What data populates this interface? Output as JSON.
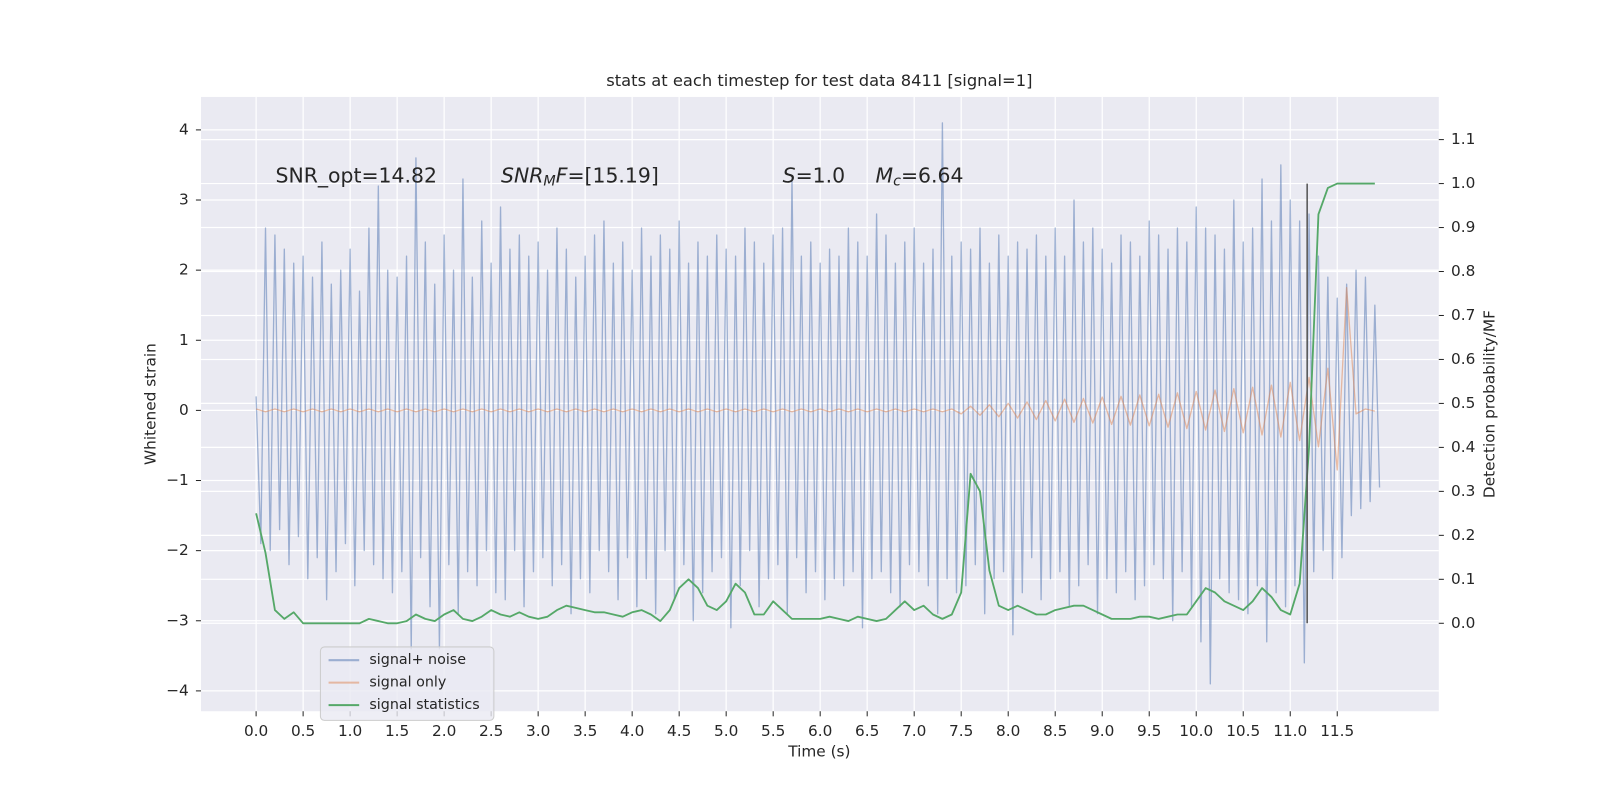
{
  "chart_data": {
    "type": "line",
    "title": "stats at each timestep for test data 8411 [signal=1]",
    "xlabel": "Time (s)",
    "ylabel": "Whitened strain",
    "y2label": "Detection probability/MF",
    "xlim": [
      -0.586,
      12.58
    ],
    "ylim": [
      -4.29,
      4.47
    ],
    "y2lim": [
      -0.2,
      1.197
    ],
    "grid": true,
    "legend": "lower left",
    "xticks": [
      {
        "value": 0,
        "label": "0.0"
      },
      {
        "value": 0.5,
        "label": "0.5"
      },
      {
        "value": 1,
        "label": "1.0"
      },
      {
        "value": 1.5,
        "label": "1.5"
      },
      {
        "value": 2,
        "label": "2.0"
      },
      {
        "value": 2.5,
        "label": "2.5"
      },
      {
        "value": 3,
        "label": "3.0"
      },
      {
        "value": 3.5,
        "label": "3.5"
      },
      {
        "value": 4,
        "label": "4.0"
      },
      {
        "value": 4.5,
        "label": "4.5"
      },
      {
        "value": 5,
        "label": "5.0"
      },
      {
        "value": 5.5,
        "label": "5.5"
      },
      {
        "value": 6,
        "label": "6.0"
      },
      {
        "value": 6.5,
        "label": "6.5"
      },
      {
        "value": 7,
        "label": "7.0"
      },
      {
        "value": 7.5,
        "label": "7.5"
      },
      {
        "value": 8,
        "label": "8.0"
      },
      {
        "value": 8.5,
        "label": "8.5"
      },
      {
        "value": 9,
        "label": "9.0"
      },
      {
        "value": 9.5,
        "label": "9.5"
      },
      {
        "value": 10,
        "label": "10.0"
      },
      {
        "value": 10.5,
        "label": "10.5"
      },
      {
        "value": 11,
        "label": "11.0"
      },
      {
        "value": 11.5,
        "label": "11.5"
      }
    ],
    "yticks": [
      {
        "value": -4,
        "label": "−4"
      },
      {
        "value": -3,
        "label": "−3"
      },
      {
        "value": -2,
        "label": "−2"
      },
      {
        "value": -1,
        "label": "−1"
      },
      0,
      1,
      2,
      3,
      4
    ],
    "y2ticks": [
      {
        "value": 0,
        "label": "0.0"
      },
      {
        "value": 0.1,
        "label": "0.1"
      },
      {
        "value": 0.2,
        "label": "0.2"
      },
      {
        "value": 0.3,
        "label": "0.3"
      },
      {
        "value": 0.4,
        "label": "0.4"
      },
      {
        "value": 0.5,
        "label": "0.5"
      },
      {
        "value": 0.6,
        "label": "0.6"
      },
      {
        "value": 0.7,
        "label": "0.7"
      },
      {
        "value": 0.8,
        "label": "0.8"
      },
      {
        "value": 0.9,
        "label": "0.9"
      },
      {
        "value": 1,
        "label": "1.0"
      },
      {
        "value": 1.1,
        "label": "1.1"
      }
    ],
    "annotations": [
      [
        {
          "t": "SNR_opt=14.82"
        }
      ],
      [
        {
          "t": "SNR",
          "style": "italic"
        },
        {
          "t": "M",
          "style": "italic-sub"
        },
        {
          "t": "F",
          "style": "italic"
        },
        {
          "t": "=[15.19]"
        }
      ],
      [
        {
          "t": "S",
          "style": "italic"
        },
        {
          "t": "=1.0"
        }
      ],
      [
        {
          "t": "M",
          "style": "italic"
        },
        {
          "t": "c",
          "style": "italic-sub"
        },
        {
          "t": "=6.64"
        }
      ]
    ],
    "vline": {
      "x": 11.18,
      "ymin": 0,
      "ymax": 1,
      "color": "#555555"
    },
    "series": [
      {
        "name": "signal+ noise",
        "color": "#4c72b0",
        "opacity": 0.5,
        "x": [
          0,
          0.05,
          0.1,
          0.15,
          0.2,
          0.25,
          0.3,
          0.35,
          0.4,
          0.45,
          0.5,
          0.55,
          0.6,
          0.65,
          0.7,
          0.75,
          0.8,
          0.85,
          0.9,
          0.95,
          1,
          1.05,
          1.1,
          1.15,
          1.2,
          1.25,
          1.3,
          1.35,
          1.4,
          1.45,
          1.5,
          1.55,
          1.6,
          1.65,
          1.7,
          1.75,
          1.8,
          1.85,
          1.9,
          1.95,
          2,
          2.05,
          2.1,
          2.15,
          2.2,
          2.25,
          2.3,
          2.35,
          2.4,
          2.45,
          2.5,
          2.55,
          2.6,
          2.65,
          2.7,
          2.75,
          2.8,
          2.85,
          2.9,
          2.95,
          3,
          3.05,
          3.1,
          3.15,
          3.2,
          3.25,
          3.3,
          3.35,
          3.4,
          3.45,
          3.5,
          3.55,
          3.6,
          3.65,
          3.7,
          3.75,
          3.8,
          3.85,
          3.9,
          3.95,
          4,
          4.05,
          4.1,
          4.15,
          4.2,
          4.25,
          4.3,
          4.35,
          4.4,
          4.45,
          4.5,
          4.55,
          4.6,
          4.65,
          4.7,
          4.75,
          4.8,
          4.85,
          4.9,
          4.95,
          5,
          5.05,
          5.1,
          5.15,
          5.2,
          5.25,
          5.3,
          5.35,
          5.4,
          5.45,
          5.5,
          5.55,
          5.6,
          5.65,
          5.7,
          5.75,
          5.8,
          5.85,
          5.9,
          5.95,
          6,
          6.05,
          6.1,
          6.15,
          6.2,
          6.25,
          6.3,
          6.35,
          6.4,
          6.45,
          6.5,
          6.55,
          6.6,
          6.65,
          6.7,
          6.75,
          6.8,
          6.85,
          6.9,
          6.95,
          7,
          7.05,
          7.1,
          7.15,
          7.2,
          7.25,
          7.3,
          7.35,
          7.4,
          7.45,
          7.5,
          7.55,
          7.6,
          7.65,
          7.7,
          7.75,
          7.8,
          7.85,
          7.9,
          7.95,
          8,
          8.05,
          8.1,
          8.15,
          8.2,
          8.25,
          8.3,
          8.35,
          8.4,
          8.45,
          8.5,
          8.55,
          8.6,
          8.65,
          8.7,
          8.75,
          8.8,
          8.85,
          8.9,
          8.95,
          9,
          9.05,
          9.1,
          9.15,
          9.2,
          9.25,
          9.3,
          9.35,
          9.4,
          9.45,
          9.5,
          9.55,
          9.6,
          9.65,
          9.7,
          9.75,
          9.8,
          9.85,
          9.9,
          9.95,
          10,
          10.05,
          10.1,
          10.15,
          10.2,
          10.25,
          10.3,
          10.35,
          10.4,
          10.45,
          10.5,
          10.55,
          10.6,
          10.65,
          10.7,
          10.75,
          10.8,
          10.85,
          10.9,
          10.95,
          11,
          11.05,
          11.1,
          11.15,
          11.2,
          11.25,
          11.3,
          11.35,
          11.4,
          11.45,
          11.5,
          11.55,
          11.6,
          11.65,
          11.7,
          11.75,
          11.8,
          11.85,
          11.9,
          11.95
        ],
        "values": [
          0.2,
          -1.9,
          2.6,
          -2.0,
          2.5,
          -1.7,
          2.3,
          -2.2,
          2.1,
          -1.8,
          2.2,
          -2.4,
          1.9,
          -2.1,
          2.4,
          -2.7,
          1.8,
          -2.3,
          2.0,
          -1.9,
          2.3,
          -2.5,
          1.7,
          -2.0,
          2.6,
          -2.2,
          3.2,
          -2.4,
          2.0,
          -2.6,
          1.9,
          -2.3,
          2.2,
          -3.4,
          3.6,
          -2.1,
          2.4,
          -2.8,
          1.8,
          -3.4,
          2.5,
          -2.2,
          2.0,
          -2.9,
          3.3,
          -2.3,
          1.9,
          -2.5,
          2.7,
          -2.0,
          2.1,
          -2.6,
          2.9,
          -2.7,
          2.3,
          -2.0,
          2.5,
          -2.8,
          2.2,
          -2.3,
          2.4,
          -2.1,
          2.0,
          -2.5,
          2.6,
          -2.2,
          2.3,
          -2.9,
          1.9,
          -2.4,
          2.2,
          -2.6,
          2.5,
          -2.0,
          2.7,
          -2.3,
          2.1,
          -2.7,
          2.4,
          -2.1,
          2.0,
          -2.8,
          2.6,
          -2.4,
          2.2,
          -2.9,
          2.5,
          -2.0,
          2.3,
          -2.7,
          2.7,
          -2.2,
          2.1,
          -3.0,
          2.4,
          -2.6,
          2.2,
          -2.3,
          2.5,
          -2.1,
          2.3,
          -3.1,
          2.2,
          -2.5,
          2.6,
          -2.0,
          2.4,
          -2.8,
          2.1,
          -2.4,
          2.5,
          -2.2,
          2.6,
          -2.9,
          3.3,
          -2.1,
          2.2,
          -2.6,
          2.4,
          -2.3,
          2.1,
          -2.7,
          2.3,
          -2.4,
          2.2,
          -2.5,
          2.6,
          -2.3,
          2.4,
          -3.1,
          2.2,
          -2.4,
          2.8,
          -2.3,
          2.5,
          -2.6,
          2.1,
          -2.8,
          2.4,
          -2.2,
          2.6,
          -2.3,
          2.1,
          -2.5,
          2.3,
          -2.9,
          4.1,
          -2.4,
          2.2,
          -2.6,
          2.4,
          -2.5,
          2.3,
          -2.2,
          2.6,
          -2.9,
          2.1,
          -2.4,
          2.5,
          -2.3,
          2.2,
          -3.2,
          2.4,
          -2.6,
          2.3,
          -2.1,
          2.5,
          -2.7,
          2.2,
          -2.4,
          2.6,
          -2.3,
          2.2,
          -2.8,
          3.0,
          -2.5,
          2.4,
          -2.2,
          2.6,
          -2.9,
          2.3,
          -2.4,
          2.1,
          -2.6,
          2.5,
          -2.3,
          2.4,
          -2.7,
          2.2,
          -2.5,
          2.7,
          -2.2,
          2.5,
          -2.4,
          2.3,
          -3.0,
          2.6,
          -2.3,
          2.4,
          -2.8,
          2.9,
          -3.3,
          2.6,
          -3.9,
          2.5,
          -2.4,
          2.3,
          -2.6,
          3.0,
          -2.7,
          2.4,
          -2.9,
          2.6,
          -2.5,
          3.3,
          -3.3,
          2.7,
          -2.6,
          3.5,
          -2.8,
          3.0,
          -2.5,
          2.7,
          -3.6,
          2.8,
          -2.3,
          2.2,
          -2.0,
          1.9,
          -2.4,
          1.6,
          -2.1,
          1.8,
          -1.5,
          2.0,
          -1.4,
          1.9,
          -1.3,
          1.5,
          -1.1
        ]
      },
      {
        "name": "signal only",
        "color": "#dd8452",
        "opacity": 0.5,
        "x": [
          0,
          0.1,
          0.2,
          0.3,
          0.4,
          0.5,
          0.6,
          0.7,
          0.8,
          0.9,
          1,
          1.1,
          1.2,
          1.3,
          1.4,
          1.5,
          1.6,
          1.7,
          1.8,
          1.9,
          2,
          2.1,
          2.2,
          2.3,
          2.4,
          2.5,
          2.6,
          2.7,
          2.8,
          2.9,
          3,
          3.1,
          3.2,
          3.3,
          3.4,
          3.5,
          3.6,
          3.7,
          3.8,
          3.9,
          4,
          4.1,
          4.2,
          4.3,
          4.4,
          4.5,
          4.6,
          4.7,
          4.8,
          4.9,
          5,
          5.1,
          5.2,
          5.3,
          5.4,
          5.5,
          5.6,
          5.7,
          5.8,
          5.9,
          6,
          6.1,
          6.2,
          6.3,
          6.4,
          6.5,
          6.6,
          6.7,
          6.8,
          6.9,
          7,
          7.1,
          7.2,
          7.3,
          7.4,
          7.5,
          7.6,
          7.7,
          7.8,
          7.9,
          8,
          8.1,
          8.2,
          8.3,
          8.4,
          8.5,
          8.6,
          8.7,
          8.8,
          8.9,
          9,
          9.1,
          9.2,
          9.3,
          9.4,
          9.5,
          9.6,
          9.7,
          9.8,
          9.9,
          10,
          10.1,
          10.2,
          10.3,
          10.4,
          10.5,
          10.6,
          10.7,
          10.8,
          10.9,
          11,
          11.1,
          11.2,
          11.3,
          11.4,
          11.5,
          11.6,
          11.7,
          11.8,
          11.9
        ],
        "values": [
          0.02,
          -0.02,
          0.02,
          -0.02,
          0.02,
          -0.02,
          0.02,
          -0.02,
          0.02,
          -0.02,
          0.02,
          -0.02,
          0.02,
          -0.02,
          0.02,
          -0.02,
          0.02,
          -0.02,
          0.02,
          -0.02,
          0.02,
          -0.02,
          0.02,
          -0.02,
          0.02,
          -0.02,
          0.02,
          -0.02,
          0.02,
          -0.02,
          0.02,
          -0.02,
          0.02,
          -0.02,
          0.02,
          -0.02,
          0.02,
          -0.02,
          0.02,
          -0.02,
          0.02,
          -0.02,
          0.02,
          -0.02,
          0.02,
          -0.02,
          0.02,
          -0.02,
          0.02,
          -0.02,
          0.02,
          -0.02,
          0.02,
          -0.02,
          0.02,
          -0.02,
          0.02,
          -0.02,
          0.02,
          -0.02,
          0.02,
          -0.02,
          0.02,
          -0.02,
          0.02,
          -0.02,
          0.02,
          -0.02,
          0.02,
          -0.02,
          0.02,
          -0.02,
          0.02,
          -0.02,
          0.02,
          -0.05,
          0.06,
          -0.07,
          0.08,
          -0.09,
          0.1,
          -0.11,
          0.12,
          -0.13,
          0.14,
          -0.15,
          0.16,
          -0.17,
          0.17,
          -0.18,
          0.19,
          -0.2,
          0.2,
          -0.21,
          0.22,
          -0.22,
          0.23,
          -0.24,
          0.25,
          -0.26,
          0.27,
          -0.28,
          0.29,
          -0.3,
          0.31,
          -0.32,
          0.33,
          -0.35,
          0.36,
          -0.38,
          0.4,
          -0.43,
          0.47,
          -0.52,
          0.6,
          -0.85,
          1.75,
          -0.05,
          0.02,
          -0.01
        ]
      },
      {
        "name": "signal statistics",
        "color": "#55a868",
        "axis": "y2",
        "x": [
          0,
          0.1,
          0.2,
          0.3,
          0.4,
          0.5,
          0.6,
          0.7,
          0.8,
          0.9,
          1,
          1.1,
          1.2,
          1.3,
          1.4,
          1.5,
          1.6,
          1.7,
          1.8,
          1.9,
          2,
          2.1,
          2.2,
          2.3,
          2.4,
          2.5,
          2.6,
          2.7,
          2.8,
          2.9,
          3,
          3.1,
          3.2,
          3.3,
          3.4,
          3.5,
          3.6,
          3.7,
          3.8,
          3.9,
          4,
          4.1,
          4.2,
          4.3,
          4.4,
          4.5,
          4.6,
          4.7,
          4.8,
          4.9,
          5,
          5.1,
          5.2,
          5.3,
          5.4,
          5.5,
          5.6,
          5.7,
          5.8,
          5.9,
          6,
          6.1,
          6.2,
          6.3,
          6.4,
          6.5,
          6.6,
          6.7,
          6.8,
          6.9,
          7,
          7.1,
          7.2,
          7.3,
          7.4,
          7.5,
          7.6,
          7.7,
          7.8,
          7.9,
          8,
          8.1,
          8.2,
          8.3,
          8.4,
          8.5,
          8.6,
          8.7,
          8.8,
          8.9,
          9,
          9.1,
          9.2,
          9.3,
          9.4,
          9.5,
          9.6,
          9.7,
          9.8,
          9.9,
          10,
          10.1,
          10.2,
          10.3,
          10.4,
          10.5,
          10.6,
          10.7,
          10.8,
          10.9,
          11,
          11.1,
          11.2,
          11.3,
          11.4,
          11.5,
          11.6,
          11.7,
          11.8,
          11.9
        ],
        "values": [
          0.25,
          0.16,
          0.03,
          0.01,
          0.025,
          0.0,
          0.0,
          0.0,
          0.0,
          0.0,
          0.0,
          0.0,
          0.01,
          0.005,
          0.0,
          0.0,
          0.005,
          0.02,
          0.01,
          0.005,
          0.02,
          0.03,
          0.01,
          0.005,
          0.015,
          0.03,
          0.02,
          0.015,
          0.025,
          0.015,
          0.01,
          0.015,
          0.03,
          0.04,
          0.035,
          0.03,
          0.025,
          0.025,
          0.02,
          0.015,
          0.025,
          0.03,
          0.02,
          0.005,
          0.03,
          0.08,
          0.1,
          0.08,
          0.04,
          0.03,
          0.05,
          0.09,
          0.07,
          0.02,
          0.02,
          0.05,
          0.03,
          0.01,
          0.01,
          0.01,
          0.01,
          0.015,
          0.01,
          0.005,
          0.015,
          0.01,
          0.005,
          0.01,
          0.03,
          0.05,
          0.03,
          0.04,
          0.02,
          0.01,
          0.02,
          0.07,
          0.34,
          0.3,
          0.12,
          0.04,
          0.03,
          0.04,
          0.03,
          0.02,
          0.02,
          0.03,
          0.035,
          0.04,
          0.04,
          0.03,
          0.02,
          0.01,
          0.01,
          0.01,
          0.015,
          0.015,
          0.01,
          0.015,
          0.02,
          0.02,
          0.05,
          0.08,
          0.07,
          0.05,
          0.04,
          0.03,
          0.05,
          0.08,
          0.06,
          0.03,
          0.02,
          0.09,
          0.4,
          0.93,
          0.99,
          1.0,
          1.0,
          1.0,
          1.0,
          1.0
        ]
      }
    ]
  }
}
